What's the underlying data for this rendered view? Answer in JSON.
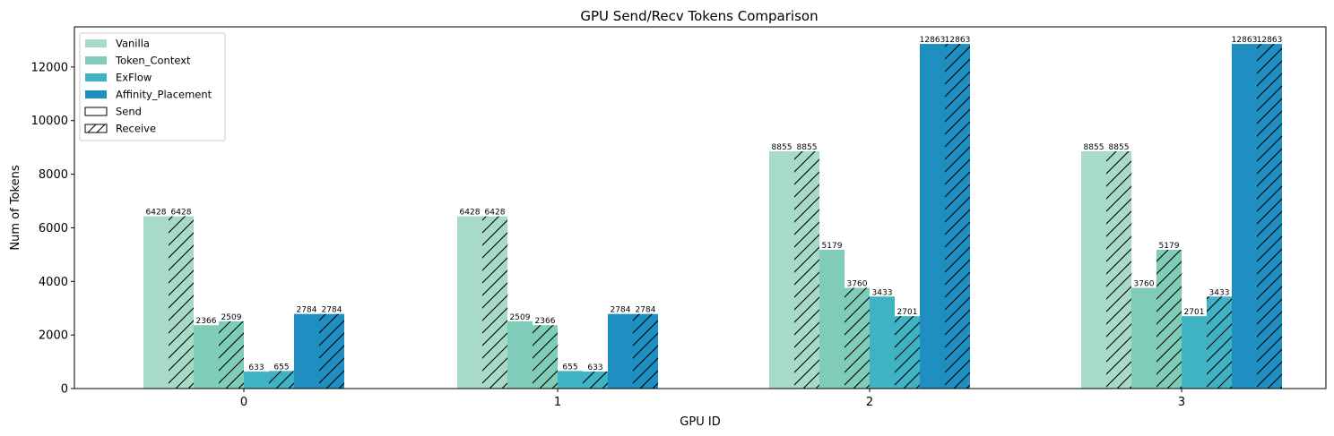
{
  "chart_data": {
    "type": "bar",
    "title": "GPU Send/Recv Tokens Comparison",
    "xlabel": "GPU ID",
    "ylabel": "Num of Tokens",
    "categories": [
      "0",
      "1",
      "2",
      "3"
    ],
    "ylim": [
      0,
      13500
    ],
    "yticks": [
      0,
      2000,
      4000,
      6000,
      8000,
      10000,
      12000
    ],
    "grid": false,
    "legend_position": "top-left",
    "series": [
      {
        "name": "Vanilla",
        "color": "#a8dac8",
        "send": [
          6428,
          6428,
          8855,
          8855
        ],
        "receive": [
          6428,
          6428,
          8855,
          8855
        ]
      },
      {
        "name": "Token_Context",
        "color": "#7fcdb8",
        "send": [
          2366,
          2509,
          5179,
          3760
        ],
        "receive": [
          2509,
          2366,
          3760,
          5179
        ]
      },
      {
        "name": "ExFlow",
        "color": "#3fb2c3",
        "send": [
          633,
          655,
          3433,
          2701
        ],
        "receive": [
          655,
          633,
          2701,
          3433
        ]
      },
      {
        "name": "Affinity_Placement",
        "color": "#1e8fc0",
        "send": [
          2784,
          2784,
          12863,
          12863
        ],
        "receive": [
          2784,
          2784,
          12863,
          12863
        ]
      }
    ],
    "hatch_legend": [
      {
        "name": "Send",
        "hatch": "none"
      },
      {
        "name": "Receive",
        "hatch": "diagonal"
      }
    ]
  }
}
